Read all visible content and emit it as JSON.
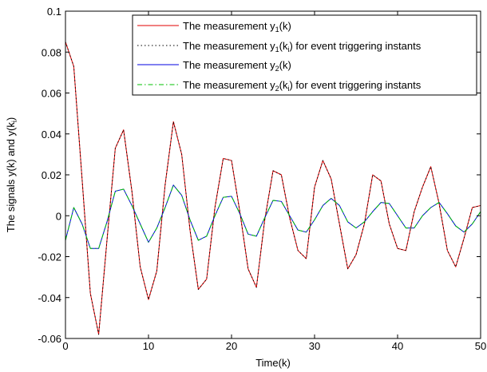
{
  "chart_data": {
    "type": "line",
    "title": "",
    "xlabel": "Time(k)",
    "ylabel": {
      "main": "The signals y(k) and y(k",
      "sub": "i",
      "close": ")"
    },
    "xlim": [
      0,
      50
    ],
    "ylim": [
      -0.06,
      0.1
    ],
    "xticks": [
      "0",
      "10",
      "20",
      "30",
      "40",
      "50"
    ],
    "yticks": [
      "-0.06",
      "-0.04",
      "-0.02",
      "0",
      "0.02",
      "0.04",
      "0.06",
      "0.08",
      "0.1"
    ],
    "grid": false,
    "legend_position": "top-right",
    "x": [
      0,
      1,
      2,
      3,
      4,
      5,
      6,
      7,
      8,
      9,
      10,
      11,
      12,
      13,
      14,
      15,
      16,
      17,
      18,
      19,
      20,
      21,
      22,
      23,
      24,
      25,
      26,
      27,
      28,
      29,
      30,
      31,
      32,
      33,
      34,
      35,
      36,
      37,
      38,
      39,
      40,
      41,
      42,
      43,
      44,
      45,
      46,
      47,
      48,
      49,
      50
    ],
    "series": [
      {
        "legend": {
          "pre": "The measurement y",
          "sub": "1",
          "post": "(k)",
          "sub2": "",
          "post2": ""
        },
        "color": "#e00000",
        "dash": "",
        "values": [
          0.085,
          0.073,
          0.018,
          -0.038,
          -0.058,
          -0.012,
          0.033,
          0.042,
          0.012,
          -0.025,
          -0.041,
          -0.027,
          0.015,
          0.046,
          0.03,
          -0.007,
          -0.036,
          -0.031,
          0.004,
          0.028,
          0.027,
          0.002,
          -0.026,
          -0.035,
          -0.002,
          0.022,
          0.02,
          -0.001,
          -0.017,
          -0.021,
          0.014,
          0.027,
          0.018,
          -0.004,
          -0.026,
          -0.019,
          -0.004,
          0.02,
          0.017,
          -0.004,
          -0.016,
          -0.017,
          0.002,
          0.014,
          0.024,
          0.006,
          -0.017,
          -0.025,
          -0.011,
          0.004,
          0.005
        ]
      },
      {
        "legend": {
          "pre": "The measurement y",
          "sub": "1",
          "post": "(k",
          "sub2": "i",
          "post2": ") for event triggering instants"
        },
        "color": "#000000",
        "dash": "1.5 3",
        "values": [
          0.085,
          0.073,
          0.018,
          -0.038,
          -0.058,
          -0.012,
          0.033,
          0.042,
          0.012,
          -0.025,
          -0.041,
          -0.027,
          0.015,
          0.046,
          0.03,
          -0.007,
          -0.036,
          -0.031,
          0.004,
          0.028,
          0.027,
          0.002,
          -0.026,
          -0.035,
          -0.002,
          0.022,
          0.02,
          -0.001,
          -0.017,
          -0.021,
          0.014,
          0.027,
          0.018,
          -0.004,
          -0.026,
          -0.019,
          -0.004,
          0.02,
          0.017,
          -0.004,
          -0.016,
          -0.017,
          0.002,
          0.014,
          0.024,
          0.006,
          -0.017,
          -0.025,
          -0.011,
          0.004,
          0.005
        ]
      },
      {
        "legend": {
          "pre": "The measurement y",
          "sub": "2",
          "post": "(k)",
          "sub2": "",
          "post2": ""
        },
        "color": "#0000e0",
        "dash": "",
        "values": [
          -0.012,
          0.004,
          -0.004,
          -0.016,
          -0.016,
          -0.003,
          0.012,
          0.013,
          0.005,
          -0.004,
          -0.013,
          -0.006,
          0.004,
          0.015,
          0.01,
          -0.002,
          -0.012,
          -0.01,
          0.0,
          0.009,
          0.0095,
          0.001,
          -0.009,
          -0.01,
          -0.001,
          0.0075,
          0.007,
          0.0,
          -0.007,
          -0.008,
          -0.002,
          0.005,
          0.0085,
          0.005,
          -0.003,
          -0.006,
          -0.003,
          0.002,
          0.0065,
          0.006,
          0.0,
          -0.006,
          -0.006,
          0.0,
          0.004,
          0.0065,
          0.001,
          -0.005,
          -0.008,
          -0.004,
          0.002
        ]
      },
      {
        "legend": {
          "pre": "The measurement y",
          "sub": "2",
          "post": "(k",
          "sub2": "i",
          "post2": ") for event triggering instants"
        },
        "color": "#00c000",
        "dash": "6 3 1.5 3",
        "values": [
          -0.012,
          0.004,
          -0.004,
          -0.016,
          -0.016,
          -0.003,
          0.012,
          0.013,
          0.005,
          -0.004,
          -0.013,
          -0.006,
          0.004,
          0.015,
          0.01,
          -0.002,
          -0.012,
          -0.01,
          0.0,
          0.009,
          0.0095,
          0.001,
          -0.009,
          -0.01,
          -0.001,
          0.0075,
          0.007,
          0.0,
          -0.007,
          -0.008,
          -0.002,
          0.005,
          0.0085,
          0.005,
          -0.003,
          -0.006,
          -0.003,
          0.002,
          0.0065,
          0.006,
          0.0,
          -0.006,
          -0.006,
          0.0,
          0.004,
          0.0065,
          0.001,
          -0.005,
          -0.008,
          -0.004,
          0.002
        ]
      }
    ]
  }
}
